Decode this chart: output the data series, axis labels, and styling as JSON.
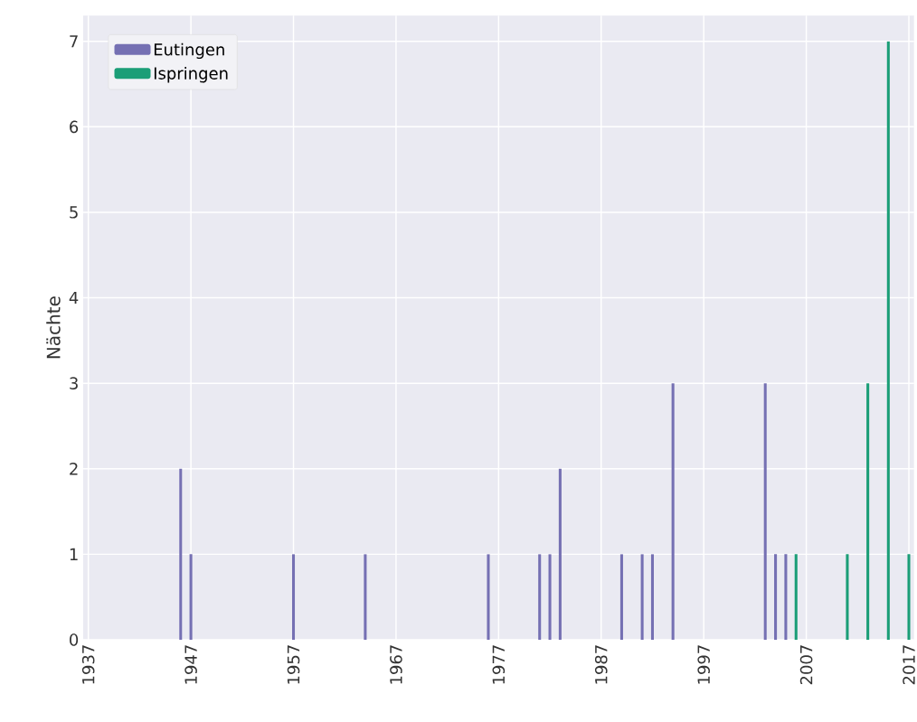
{
  "chart_data": {
    "type": "bar",
    "ylabel": "Nächte",
    "xlim": [
      1936.5,
      2017.5
    ],
    "ylim": [
      0,
      7.3
    ],
    "xticks": [
      1937,
      1947,
      1957,
      1967,
      1977,
      1987,
      1997,
      2007,
      2017
    ],
    "yticks": [
      0,
      1,
      2,
      3,
      4,
      5,
      6,
      7
    ],
    "grid": true,
    "legend": "top left",
    "series": [
      {
        "name": "Eutingen",
        "color": "#7570b3",
        "x": [
          1946,
          1947,
          1957,
          1964,
          1976,
          1981,
          1982,
          1983,
          1989,
          1991,
          1992,
          1994,
          2003,
          2004,
          2005
        ],
        "values": [
          2,
          1,
          1,
          1,
          1,
          1,
          1,
          2,
          1,
          1,
          1,
          3,
          3,
          1,
          1
        ]
      },
      {
        "name": "Ispringen",
        "color": "#1b9e77",
        "x": [
          2006,
          2011,
          2013,
          2015,
          2017
        ],
        "values": [
          1,
          1,
          3,
          7,
          1
        ]
      }
    ]
  }
}
